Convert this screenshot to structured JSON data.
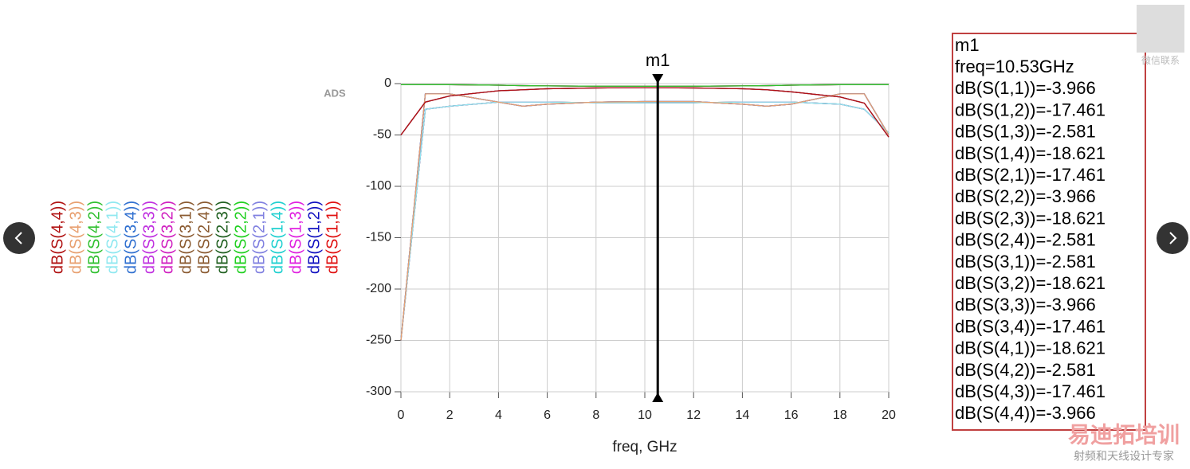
{
  "chart_data": {
    "type": "line",
    "brand_label": "ADS",
    "xlabel": "freq, GHz",
    "xlim": [
      0,
      20
    ],
    "xticks": [
      0,
      2,
      4,
      6,
      8,
      10,
      12,
      14,
      16,
      18,
      20
    ],
    "ylim": [
      -300,
      0
    ],
    "yticks": [
      0,
      -50,
      -100,
      -150,
      -200,
      -250,
      -300
    ],
    "grid": true,
    "x": [
      0,
      1,
      2,
      4,
      5,
      6,
      8,
      10,
      12,
      14,
      15,
      16,
      18,
      19,
      20
    ],
    "series": [
      {
        "name": "dB(S(1,1))",
        "color": "#e01010",
        "values": [
          -50,
          -18,
          -12,
          -7,
          -6,
          -5,
          -4.2,
          -3.97,
          -4.2,
          -5,
          -6,
          -8,
          -13,
          -19,
          -52
        ]
      },
      {
        "name": "dB(S(1,2))",
        "color": "#1010c0",
        "values": [
          -250,
          -10,
          -10,
          -18,
          -22,
          -20,
          -18,
          -17.5,
          -17.5,
          -20,
          -22,
          -20,
          -10,
          -10,
          -50
        ]
      },
      {
        "name": "dB(S(1,3))",
        "color": "#e020e0",
        "values": [
          -1,
          -1,
          -1,
          -1.5,
          -2,
          -2.2,
          -2.5,
          -2.6,
          -2.5,
          -2.2,
          -2,
          -1.5,
          -1,
          -1,
          -1
        ]
      },
      {
        "name": "dB(S(1,4))",
        "color": "#20d0d0",
        "values": [
          -250,
          -25,
          -22,
          -18,
          -18,
          -18,
          -18.6,
          -18.6,
          -18.6,
          -18,
          -18,
          -18,
          -20,
          -25,
          -48
        ]
      },
      {
        "name": "dB(S(2,1))",
        "color": "#8080e0",
        "values": [
          -250,
          -10,
          -10,
          -18,
          -22,
          -20,
          -18,
          -17.5,
          -17.5,
          -20,
          -22,
          -20,
          -10,
          -10,
          -50
        ]
      },
      {
        "name": "dB(S(2,2))",
        "color": "#20d020",
        "values": [
          -50,
          -18,
          -12,
          -7,
          -6,
          -5,
          -4.2,
          -3.97,
          -4.2,
          -5,
          -6,
          -8,
          -13,
          -19,
          -52
        ]
      },
      {
        "name": "dB(S(2,3))",
        "color": "#206020",
        "values": [
          -250,
          -25,
          -22,
          -18,
          -18,
          -18,
          -18.6,
          -18.6,
          -18.6,
          -18,
          -18,
          -18,
          -20,
          -25,
          -48
        ]
      },
      {
        "name": "dB(S(2,4))",
        "color": "#8a5a30",
        "values": [
          -1,
          -1,
          -1,
          -1.5,
          -2,
          -2.2,
          -2.5,
          -2.6,
          -2.5,
          -2.2,
          -2,
          -1.5,
          -1,
          -1,
          -1
        ]
      },
      {
        "name": "dB(S(3,1))",
        "color": "#8a5a30",
        "values": [
          -1,
          -1,
          -1,
          -1.5,
          -2,
          -2.2,
          -2.5,
          -2.6,
          -2.5,
          -2.2,
          -2,
          -1.5,
          -1,
          -1,
          -1
        ]
      },
      {
        "name": "dB(S(3,2))",
        "color": "#d020c0",
        "values": [
          -250,
          -25,
          -22,
          -18,
          -18,
          -18,
          -18.6,
          -18.6,
          -18.6,
          -18,
          -18,
          -18,
          -20,
          -25,
          -48
        ]
      },
      {
        "name": "dB(S(3,3))",
        "color": "#c030e0",
        "values": [
          -50,
          -18,
          -12,
          -7,
          -6,
          -5,
          -4.2,
          -3.97,
          -4.2,
          -5,
          -6,
          -8,
          -13,
          -19,
          -52
        ]
      },
      {
        "name": "dB(S(3,4))",
        "color": "#3070d0",
        "values": [
          -250,
          -10,
          -10,
          -18,
          -22,
          -20,
          -18,
          -17.5,
          -17.5,
          -20,
          -22,
          -20,
          -10,
          -10,
          -50
        ]
      },
      {
        "name": "dB(S(4,1))",
        "color": "#90e8f0",
        "values": [
          -250,
          -25,
          -22,
          -18,
          -18,
          -18,
          -18.6,
          -18.6,
          -18.6,
          -18,
          -18,
          -18,
          -20,
          -25,
          -48
        ]
      },
      {
        "name": "dB(S(4,2))",
        "color": "#30c030",
        "values": [
          -1,
          -1,
          -1,
          -1.5,
          -2,
          -2.2,
          -2.5,
          -2.6,
          -2.5,
          -2.2,
          -2,
          -1.5,
          -1,
          -1,
          -1
        ]
      },
      {
        "name": "dB(S(4,3))",
        "color": "#e8a070",
        "values": [
          -250,
          -10,
          -10,
          -18,
          -22,
          -20,
          -18,
          -17.5,
          -17.5,
          -20,
          -22,
          -20,
          -10,
          -10,
          -50
        ]
      },
      {
        "name": "dB(S(4,4))",
        "color": "#b01010",
        "values": [
          -50,
          -18,
          -12,
          -7,
          -6,
          -5,
          -4.2,
          -3.97,
          -4.2,
          -5,
          -6,
          -8,
          -13,
          -19,
          -52
        ]
      }
    ],
    "marker": {
      "label": "m1",
      "x": 10.53,
      "readout": [
        "m1",
        "freq=10.53GHz",
        "dB(S(1,1))=-3.966",
        "dB(S(1,2))=-17.461",
        "dB(S(1,3))=-2.581",
        "dB(S(1,4))=-18.621",
        "dB(S(2,1))=-17.461",
        "dB(S(2,2))=-3.966",
        "dB(S(2,3))=-18.621",
        "dB(S(2,4))=-2.581",
        "dB(S(3,1))=-2.581",
        "dB(S(3,2))=-18.621",
        "dB(S(3,3))=-3.966",
        "dB(S(3,4))=-17.461",
        "dB(S(4,1))=-18.621",
        "dB(S(4,2))=-2.581",
        "dB(S(4,3))=-17.461",
        "dB(S(4,4))=-3.966"
      ]
    }
  },
  "watermark": {
    "contact": "微信联系",
    "brand": "易迪拓培训",
    "slogan": "射频和天线设计专家"
  }
}
